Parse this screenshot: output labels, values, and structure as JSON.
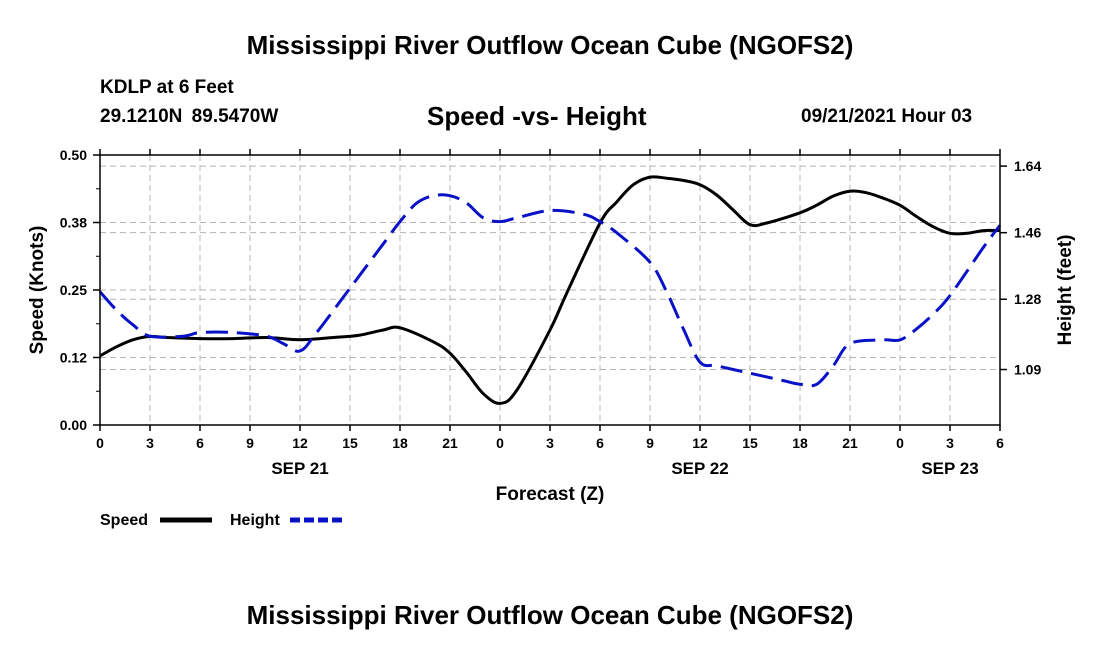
{
  "header": {
    "title": "Mississippi River Outflow Ocean Cube (NGOFS2)",
    "station": "KDLP at 6 Feet",
    "coordinates": "29.1210N  89.5470W",
    "subtitle": "Speed -vs- Height",
    "datetime": "09/21/2021 Hour 03"
  },
  "footer": {
    "title": "Mississippi River Outflow Ocean Cube (NGOFS2)"
  },
  "colors": {
    "speed": "#000000",
    "height": "#0a12c8",
    "grid": "#b4b4b4"
  },
  "chart_data": {
    "type": "line",
    "title": "Speed -vs- Height",
    "xlabel": "Forecast (Z)",
    "ylabel": "Speed (Knots)",
    "y2label": "Height (feet)",
    "xlim": [
      0,
      54
    ],
    "ylim": [
      0.0,
      0.5
    ],
    "y2lim": [
      0.94,
      1.67
    ],
    "x_ticks": [
      0,
      3,
      6,
      9,
      12,
      15,
      18,
      21,
      24,
      27,
      30,
      33,
      36,
      39,
      42,
      45,
      48,
      51,
      54
    ],
    "x_tick_labels": [
      "0",
      "3",
      "6",
      "9",
      "12",
      "15",
      "18",
      "21",
      "0",
      "3",
      "6",
      "9",
      "12",
      "15",
      "18",
      "21",
      "0",
      "3",
      "6"
    ],
    "y_ticks": [
      0.0,
      0.125,
      0.25,
      0.375,
      0.5
    ],
    "y_tick_labels": [
      "0.00",
      "0.12",
      "0.25",
      "0.38",
      "0.50"
    ],
    "y2_ticks": [
      1.09,
      1.28,
      1.46,
      1.64
    ],
    "y2_tick_labels": [
      "1.09",
      "1.28",
      "1.46",
      "1.64"
    ],
    "date_labels": [
      {
        "x": 12,
        "label": "SEP 21"
      },
      {
        "x": 36,
        "label": "SEP 22"
      },
      {
        "x": 51,
        "label": "SEP 23"
      }
    ],
    "grid": true,
    "legend_position": "bottom-left",
    "series": [
      {
        "name": "Speed",
        "axis": "left",
        "style": "solid",
        "x": [
          0,
          1,
          2,
          3,
          4,
          6,
          8,
          10,
          12,
          14,
          15.5,
          17,
          18,
          20,
          21,
          22,
          23,
          24,
          25,
          27,
          28,
          30,
          31,
          32,
          33,
          34,
          35,
          36,
          37,
          38,
          39,
          40,
          42,
          43,
          44,
          45,
          46,
          47,
          48,
          49,
          50,
          51,
          52,
          53,
          54
        ],
        "values": [
          0.128,
          0.145,
          0.158,
          0.164,
          0.162,
          0.16,
          0.16,
          0.162,
          0.158,
          0.162,
          0.166,
          0.176,
          0.18,
          0.154,
          0.133,
          0.097,
          0.058,
          0.04,
          0.064,
          0.176,
          0.244,
          0.374,
          0.413,
          0.445,
          0.459,
          0.457,
          0.453,
          0.445,
          0.426,
          0.398,
          0.371,
          0.374,
          0.393,
          0.407,
          0.424,
          0.433,
          0.43,
          0.42,
          0.407,
          0.386,
          0.367,
          0.355,
          0.355,
          0.36,
          0.36
        ]
      },
      {
        "name": "Height",
        "axis": "right",
        "style": "dashed",
        "x": [
          0,
          1,
          2,
          3,
          5,
          6,
          8,
          10,
          11,
          12,
          13,
          15,
          17,
          18,
          19,
          20,
          21,
          22,
          23,
          24,
          25,
          27,
          29,
          30,
          31,
          33,
          34,
          35,
          36,
          37,
          39,
          41,
          42,
          43,
          44,
          45,
          47,
          48,
          49,
          50,
          51,
          53,
          54
        ],
        "values": [
          1.3,
          1.25,
          1.21,
          1.18,
          1.18,
          1.19,
          1.19,
          1.18,
          1.16,
          1.14,
          1.19,
          1.31,
          1.43,
          1.49,
          1.54,
          1.56,
          1.56,
          1.54,
          1.5,
          1.49,
          1.5,
          1.52,
          1.51,
          1.49,
          1.46,
          1.38,
          1.3,
          1.2,
          1.11,
          1.1,
          1.08,
          1.06,
          1.05,
          1.05,
          1.1,
          1.16,
          1.17,
          1.17,
          1.2,
          1.24,
          1.29,
          1.42,
          1.48
        ]
      }
    ]
  },
  "legend": {
    "items": [
      {
        "label": "Speed"
      },
      {
        "label": "Height"
      }
    ]
  }
}
